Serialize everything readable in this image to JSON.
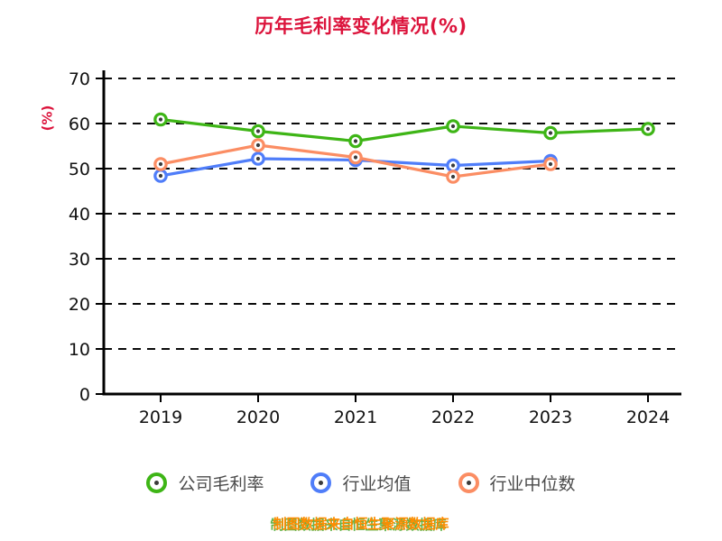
{
  "title": "历年毛利率变化情况(%)",
  "title_color": "#dc143c",
  "ylabel": "(%)",
  "ylabel_color": "#dc143c",
  "footer": "制图数据来自恒生聚源数据库",
  "footer_color": "#ff8c00",
  "chart_data": {
    "type": "line",
    "title": "历年毛利率变化情况(%)",
    "xlabel": "",
    "ylabel": "(%)",
    "categories": [
      "2019",
      "2020",
      "2021",
      "2022",
      "2023",
      "2024"
    ],
    "ylim": [
      0,
      70
    ],
    "yticks": [
      0,
      10,
      20,
      30,
      40,
      50,
      60,
      70
    ],
    "grid": "horizontal-dashed-black",
    "legend_position": "bottom",
    "series": [
      {
        "name": "公司毛利率",
        "color": "#3eb516",
        "values": [
          60.9,
          58.3,
          56.1,
          59.4,
          57.9,
          58.8
        ]
      },
      {
        "name": "行业均值",
        "color": "#4f7df9",
        "values": [
          48.4,
          52.2,
          51.9,
          50.7,
          51.7,
          null
        ]
      },
      {
        "name": "行业中位数",
        "color": "#fb8d63",
        "values": [
          51.0,
          55.2,
          52.5,
          48.2,
          51.0,
          null
        ]
      }
    ]
  }
}
